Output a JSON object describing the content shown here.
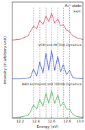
{
  "chart_data": [
    {
      "type": "line",
      "title": "A₂⁺ state",
      "xlim": [
        12.1,
        13.0
      ],
      "ylim": [
        0,
        1.1
      ],
      "tick_labels": false,
      "reference_lines": [
        12.37,
        12.45,
        12.53,
        12.6,
        12.68,
        12.75,
        12.83
      ],
      "x": [
        12.1,
        12.2,
        12.3,
        12.33,
        12.37,
        12.41,
        12.45,
        12.49,
        12.53,
        12.565,
        12.6,
        12.64,
        12.68,
        12.715,
        12.75,
        12.79,
        12.83,
        12.87,
        12.92,
        13.0
      ],
      "series": [
        {
          "name": "Expt.",
          "color": "#e0405a",
          "values": [
            0,
            0.03,
            0.15,
            0.3,
            0.5,
            0.4,
            0.7,
            0.55,
            0.85,
            0.65,
            0.95,
            0.6,
            0.75,
            0.5,
            0.55,
            0.35,
            0.3,
            0.15,
            0.08,
            0.02
          ]
        }
      ]
    },
    {
      "type": "line",
      "y_label": "Intensity (in arbitrary unit)",
      "xlim": [
        12.1,
        13.0
      ],
      "ylim": [
        0,
        1.1
      ],
      "tick_labels": false,
      "x": [
        12.1,
        12.2,
        12.3,
        12.33,
        12.37,
        12.41,
        12.45,
        12.49,
        12.53,
        12.565,
        12.6,
        12.64,
        12.68,
        12.715,
        12.75,
        12.79,
        12.83,
        12.87,
        12.92,
        13.0
      ],
      "series": [
        {
          "name": "VCM and MCTDH Dynamics",
          "color": "#3a57c8",
          "values": [
            0,
            0,
            0.03,
            0.05,
            0.35,
            0.1,
            0.6,
            0.2,
            0.9,
            0.3,
            1.0,
            0.3,
            0.8,
            0.25,
            0.5,
            0.15,
            0.3,
            0.05,
            0.02,
            0
          ]
        }
      ]
    },
    {
      "type": "line",
      "x_label": "Energy (eV)",
      "xlim": [
        12.1,
        13.0
      ],
      "ylim": [
        0,
        1.1
      ],
      "tick_labels": "x",
      "xticks": [
        12.2,
        12.4,
        12.6,
        12.8,
        {
          "value": 13,
          "label": "13.0"
        }
      ],
      "x": [
        12.1,
        12.2,
        12.3,
        12.33,
        12.37,
        12.41,
        12.45,
        12.49,
        12.53,
        12.565,
        12.6,
        12.64,
        12.68,
        12.715,
        12.75,
        12.79,
        12.83,
        12.87,
        12.92,
        13.0
      ],
      "series": [
        {
          "name": "BBO Formalism and TDDVR Dynamics",
          "color": "#3db34a",
          "values": [
            0,
            0.02,
            0.08,
            0.2,
            0.45,
            0.3,
            0.65,
            0.4,
            0.85,
            0.5,
            0.95,
            0.5,
            0.8,
            0.4,
            0.55,
            0.3,
            0.3,
            0.12,
            0.04,
            0.01
          ]
        }
      ]
    }
  ]
}
